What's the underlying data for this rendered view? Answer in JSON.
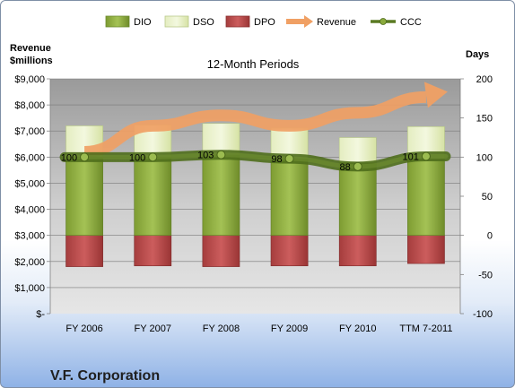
{
  "chart_data": {
    "type": "bar",
    "title": "12-Month Periods",
    "company": "V.F. Corporation",
    "categories": [
      "FY 2006",
      "FY 2007",
      "FY 2008",
      "FY 2009",
      "FY 2010",
      "TTM 7-2011"
    ],
    "left_axis": {
      "label_line1": "Revenue",
      "label_line2": "$millions",
      "ylim": [
        0,
        9000
      ],
      "ticks": [
        0,
        1000,
        2000,
        3000,
        4000,
        5000,
        6000,
        7000,
        8000,
        9000
      ],
      "tick_labels": [
        "$-",
        "$1,000",
        "$2,000",
        "$3,000",
        "$4,000",
        "$5,000",
        "$6,000",
        "$7,000",
        "$8,000",
        "$9,000"
      ]
    },
    "right_axis": {
      "label": "Days",
      "ylim": [
        -100,
        200
      ],
      "ticks": [
        -100,
        -50,
        0,
        50,
        100,
        150,
        200
      ],
      "tick_labels": [
        "-100",
        "-50",
        "0",
        "50",
        "100",
        "150",
        "200"
      ]
    },
    "series": [
      {
        "name": "DIO",
        "axis": "right",
        "kind": "bar",
        "color": "#8aaa3c",
        "values": [
          100,
          100,
          103,
          98,
          93,
          98
        ]
      },
      {
        "name": "DSO",
        "axis": "right",
        "kind": "bar_stacked",
        "color": "#dde8b2",
        "values": [
          40,
          41,
          40,
          39,
          32,
          41
        ]
      },
      {
        "name": "DPO",
        "axis": "right",
        "kind": "bar_negative",
        "color": "#b84a4a",
        "values": [
          40,
          39,
          40,
          39,
          39,
          36
        ]
      },
      {
        "name": "Revenue",
        "axis": "left",
        "kind": "arrow_line",
        "color": "#f0a064",
        "values": [
          6200,
          7200,
          7600,
          7200,
          7700,
          8300
        ]
      },
      {
        "name": "CCC",
        "axis": "right",
        "kind": "line_markers",
        "color": "#6b8a2e",
        "values": [
          100,
          100,
          103,
          98,
          88,
          101
        ]
      }
    ],
    "ccc_labels": [
      "100",
      "100",
      "103",
      "98",
      "88",
      "101"
    ],
    "grid": true,
    "legend_position": "top"
  }
}
